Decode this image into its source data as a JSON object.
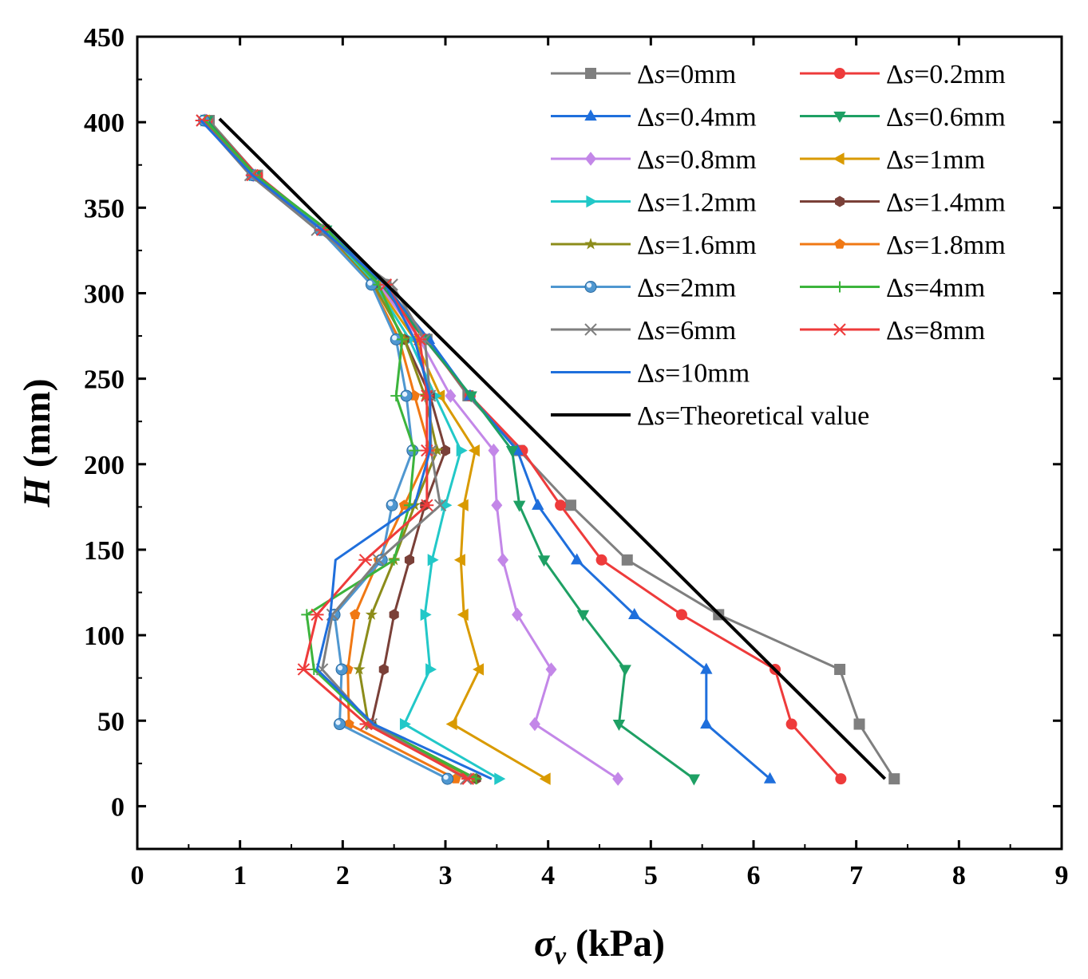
{
  "chart_data": {
    "type": "line",
    "x_axis": {
      "title_symbol": "σ",
      "title_subscript": "v",
      "title_unit": " (kPa)",
      "lim": [
        0,
        9
      ],
      "ticks": [
        "0",
        "1",
        "2",
        "3",
        "4",
        "5",
        "6",
        "7",
        "8",
        "9"
      ]
    },
    "y_axis": {
      "title_symbol": "H",
      "title_unit": " (mm)",
      "lim": [
        -25,
        450
      ],
      "ticks": [
        "0",
        "50",
        "100",
        "150",
        "200",
        "250",
        "300",
        "350",
        "400",
        "450"
      ]
    },
    "legend_position": "top-right",
    "legend_prefix": "Δs=",
    "heights": [
      16,
      48,
      80,
      112,
      144,
      176,
      208,
      240,
      273,
      305,
      337,
      369,
      401
    ],
    "series": [
      {
        "name": "0mm",
        "color": "#7f7f7f",
        "marker": "square",
        "x": [
          7.37,
          7.03,
          6.84,
          5.66,
          4.77,
          4.22,
          3.72,
          3.22,
          2.82,
          2.42,
          1.82,
          1.17,
          0.7
        ]
      },
      {
        "name": "0.2mm",
        "color": "#ee3b3b",
        "marker": "circle",
        "x": [
          6.85,
          6.37,
          6.21,
          5.3,
          4.52,
          4.12,
          3.75,
          3.24,
          2.8,
          2.35,
          1.83,
          1.17,
          0.68
        ]
      },
      {
        "name": "0.4mm",
        "color": "#1f6fdc",
        "marker": "triangle-up",
        "x": [
          6.16,
          5.54,
          5.54,
          4.84,
          4.28,
          3.9,
          3.7,
          3.24,
          2.84,
          2.4,
          1.85,
          1.15,
          0.67
        ]
      },
      {
        "name": "0.6mm",
        "color": "#1ea064",
        "marker": "triangle-down",
        "x": [
          5.42,
          4.69,
          4.75,
          4.34,
          3.96,
          3.72,
          3.65,
          3.25,
          2.8,
          2.38,
          1.84,
          1.15,
          0.68
        ]
      },
      {
        "name": "0.8mm",
        "color": "#c387e8",
        "marker": "diamond",
        "x": [
          4.68,
          3.87,
          4.03,
          3.7,
          3.56,
          3.5,
          3.47,
          3.05,
          2.75,
          2.35,
          1.83,
          1.13,
          0.66
        ]
      },
      {
        "name": "1mm",
        "color": "#d99a00",
        "marker": "triangle-left",
        "x": [
          3.98,
          3.07,
          3.33,
          3.18,
          3.15,
          3.18,
          3.29,
          2.95,
          2.7,
          2.33,
          1.82,
          1.13,
          0.66
        ]
      },
      {
        "name": "1.2mm",
        "color": "#22c8c8",
        "marker": "triangle-right",
        "x": [
          3.52,
          2.6,
          2.85,
          2.8,
          2.87,
          3.0,
          3.15,
          2.9,
          2.65,
          2.32,
          1.82,
          1.13,
          0.66
        ]
      },
      {
        "name": "1.4mm",
        "color": "#7a4038",
        "marker": "hexagon",
        "x": [
          3.3,
          2.28,
          2.4,
          2.5,
          2.65,
          2.8,
          3.0,
          2.85,
          2.6,
          2.3,
          1.8,
          1.12,
          0.65
        ]
      },
      {
        "name": "1.6mm",
        "color": "#8c8c1a",
        "marker": "star",
        "x": [
          3.28,
          2.25,
          2.16,
          2.28,
          2.5,
          2.7,
          2.92,
          2.8,
          2.6,
          2.3,
          1.8,
          1.12,
          0.65
        ]
      },
      {
        "name": "1.8mm",
        "color": "#f07814",
        "marker": "pentagon",
        "x": [
          3.1,
          2.06,
          2.05,
          2.12,
          2.35,
          2.6,
          2.85,
          2.7,
          2.55,
          2.28,
          1.79,
          1.12,
          0.65
        ]
      },
      {
        "name": "2mm",
        "color": "#4f97d0",
        "marker": "ball",
        "x": [
          3.02,
          1.97,
          1.99,
          1.92,
          2.38,
          2.48,
          2.68,
          2.62,
          2.52,
          2.28,
          1.78,
          1.12,
          0.65
        ]
      },
      {
        "name": "4mm",
        "color": "#3cb43c",
        "marker": "plus",
        "x": [
          3.3,
          2.28,
          1.72,
          1.65,
          2.5,
          2.65,
          2.7,
          2.52,
          2.58,
          2.35,
          1.85,
          1.15,
          0.66
        ]
      },
      {
        "name": "6mm",
        "color": "#7f7f7f",
        "marker": "x",
        "x": [
          3.2,
          2.28,
          1.8,
          1.9,
          2.35,
          2.95,
          2.86,
          2.85,
          2.8,
          2.48,
          1.75,
          1.1,
          0.63
        ]
      },
      {
        "name": "8mm",
        "color": "#ee3b3b",
        "marker": "asterisk",
        "x": [
          3.22,
          2.23,
          1.62,
          1.75,
          2.22,
          2.82,
          2.82,
          2.82,
          2.75,
          2.42,
          1.8,
          1.12,
          0.63
        ]
      },
      {
        "name": "10mm",
        "color": "#1f6fdc",
        "marker": "none",
        "x": [
          3.45,
          2.3,
          1.75,
          1.88,
          1.93,
          2.7,
          2.85,
          2.85,
          2.7,
          2.42,
          1.8,
          1.12,
          0.62
        ]
      },
      {
        "name": "Theoretical value",
        "color": "#000000",
        "marker": "none",
        "width": 4,
        "points": [
          [
            7.28,
            16
          ],
          [
            0.8,
            402
          ]
        ]
      }
    ]
  }
}
